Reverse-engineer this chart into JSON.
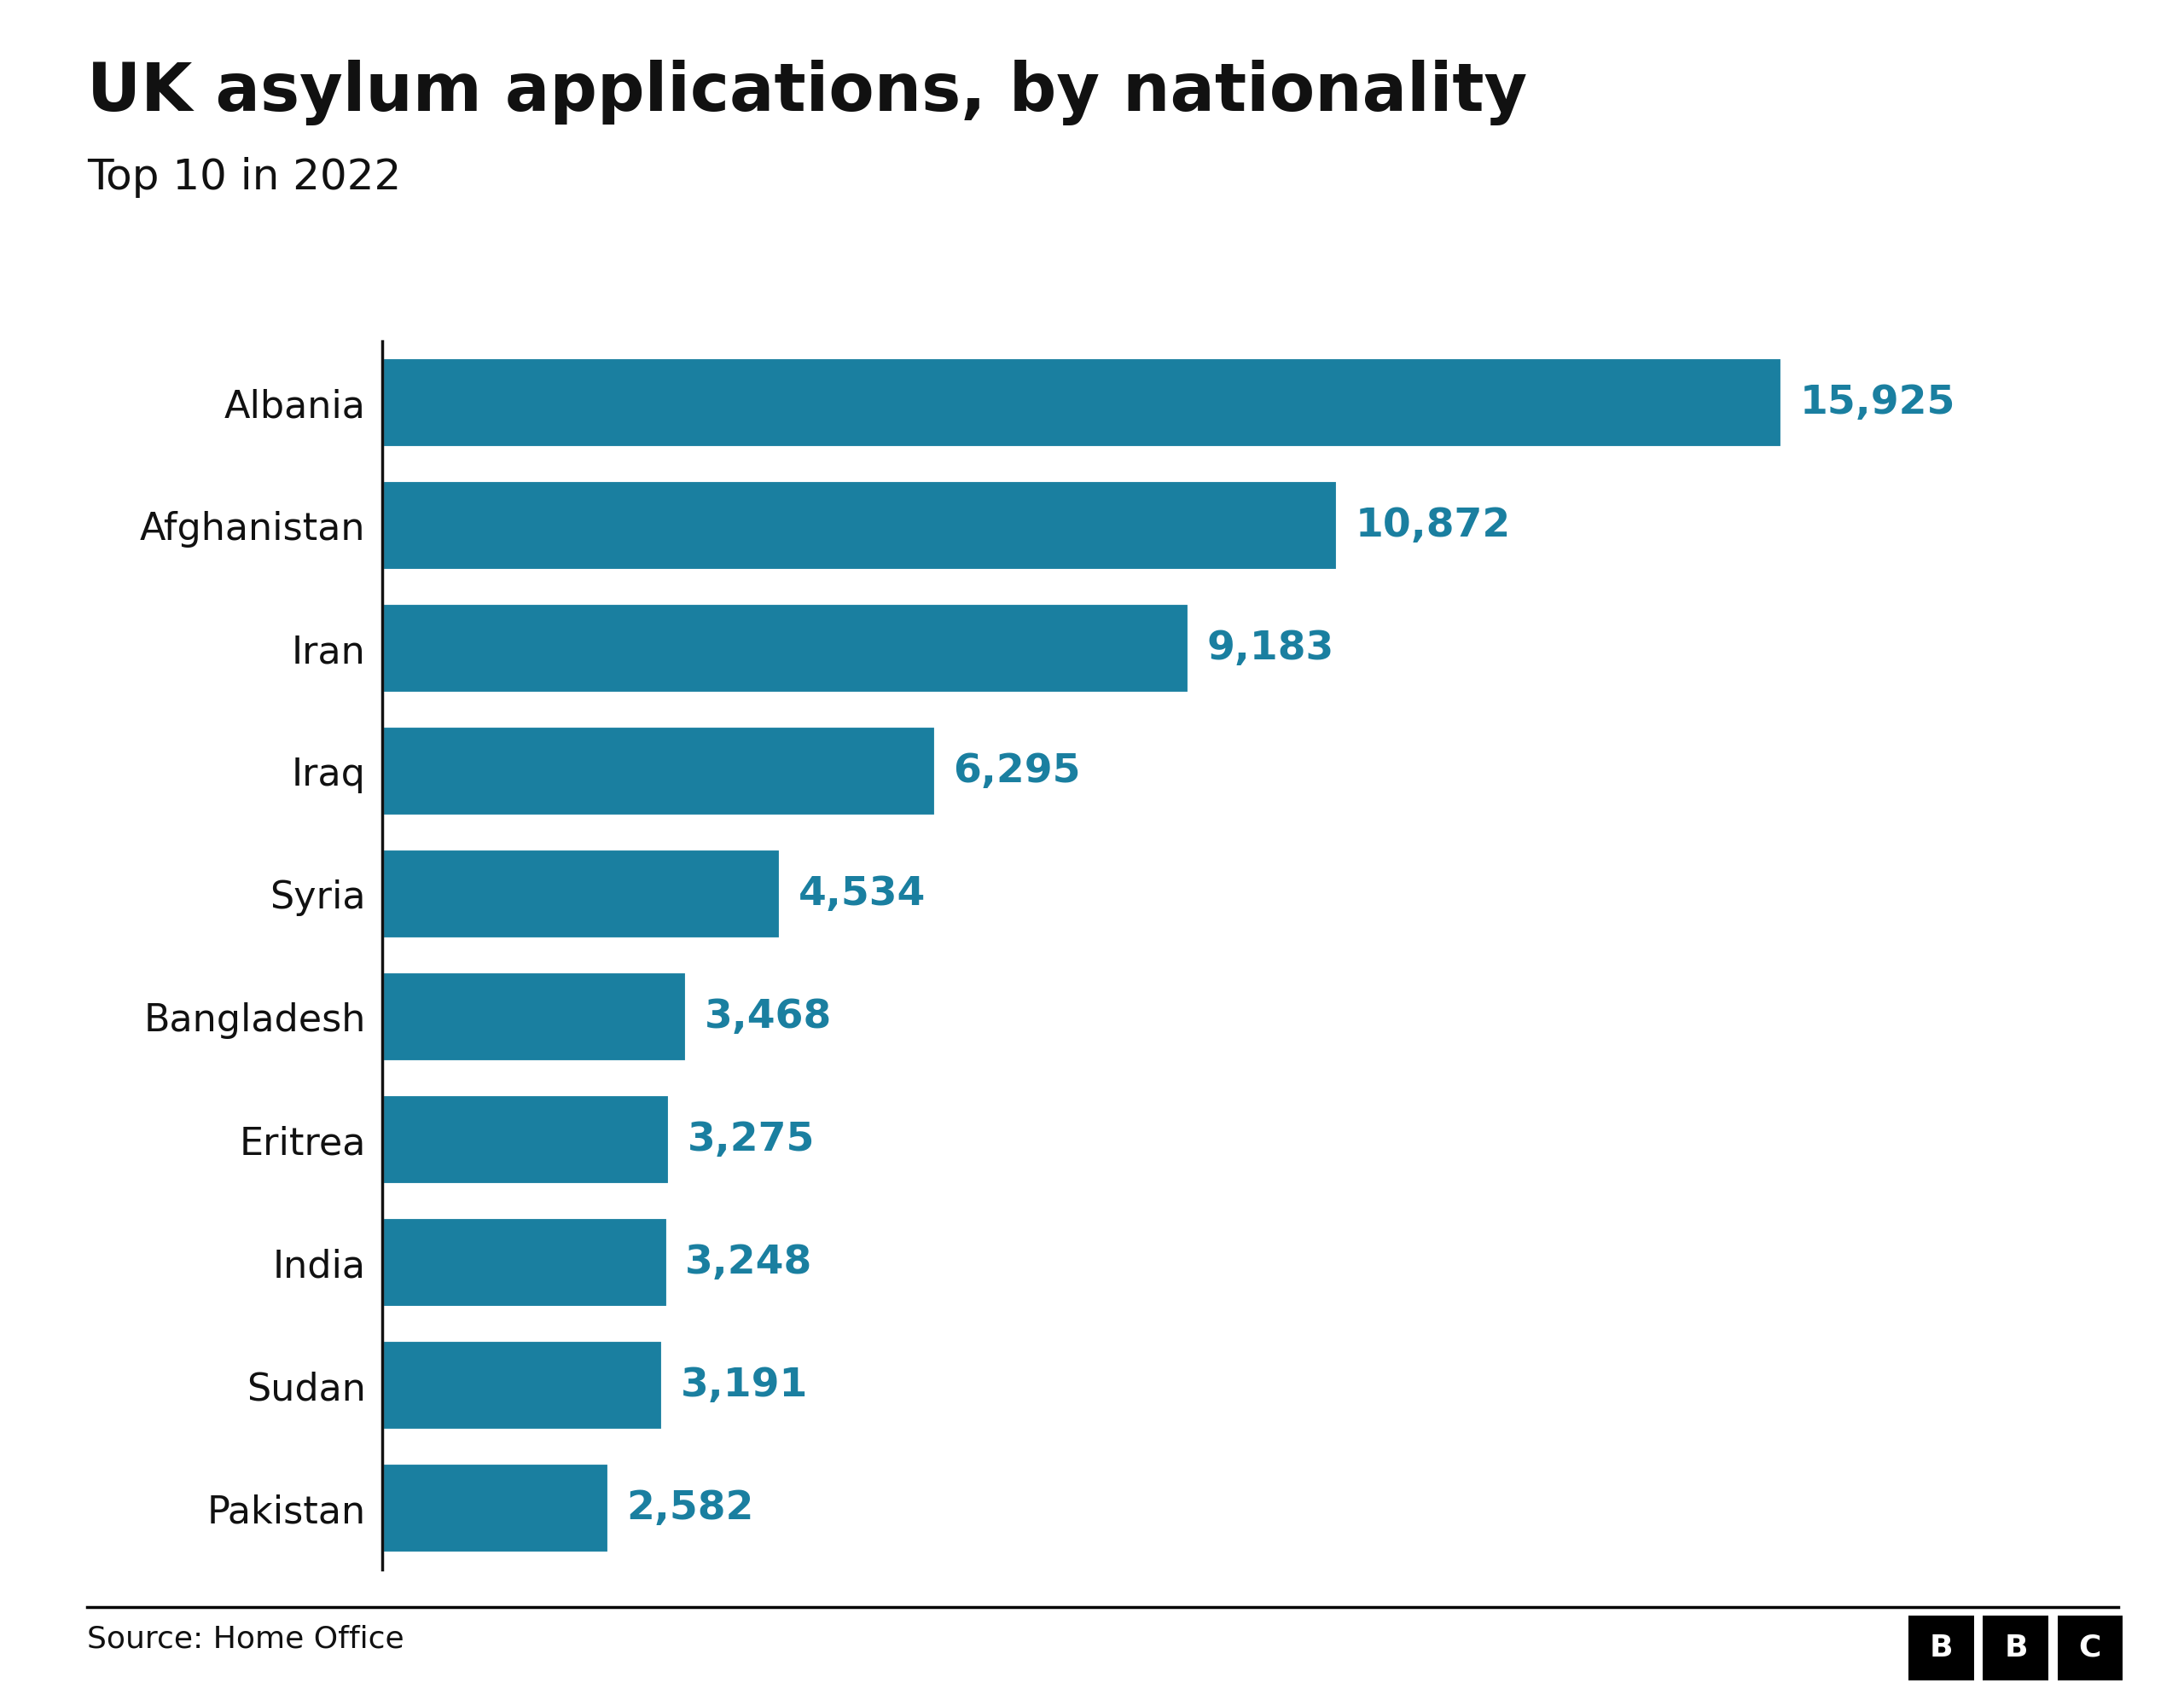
{
  "title": "UK asylum applications, by nationality",
  "subtitle": "Top 10 in 2022",
  "source": "Source: Home Office",
  "categories": [
    "Albania",
    "Afghanistan",
    "Iran",
    "Iraq",
    "Syria",
    "Bangladesh",
    "Eritrea",
    "India",
    "Sudan",
    "Pakistan"
  ],
  "values": [
    15925,
    10872,
    9183,
    6295,
    4534,
    3468,
    3275,
    3248,
    3191,
    2582
  ],
  "bar_color": "#1a7fa0",
  "value_color": "#1a7fa0",
  "label_color": "#111111",
  "background_color": "#ffffff",
  "title_color": "#111111",
  "subtitle_color": "#111111",
  "source_color": "#111111",
  "title_fontsize": 56,
  "subtitle_fontsize": 36,
  "label_fontsize": 32,
  "value_fontsize": 34,
  "source_fontsize": 26,
  "bbc_fontsize": 26
}
